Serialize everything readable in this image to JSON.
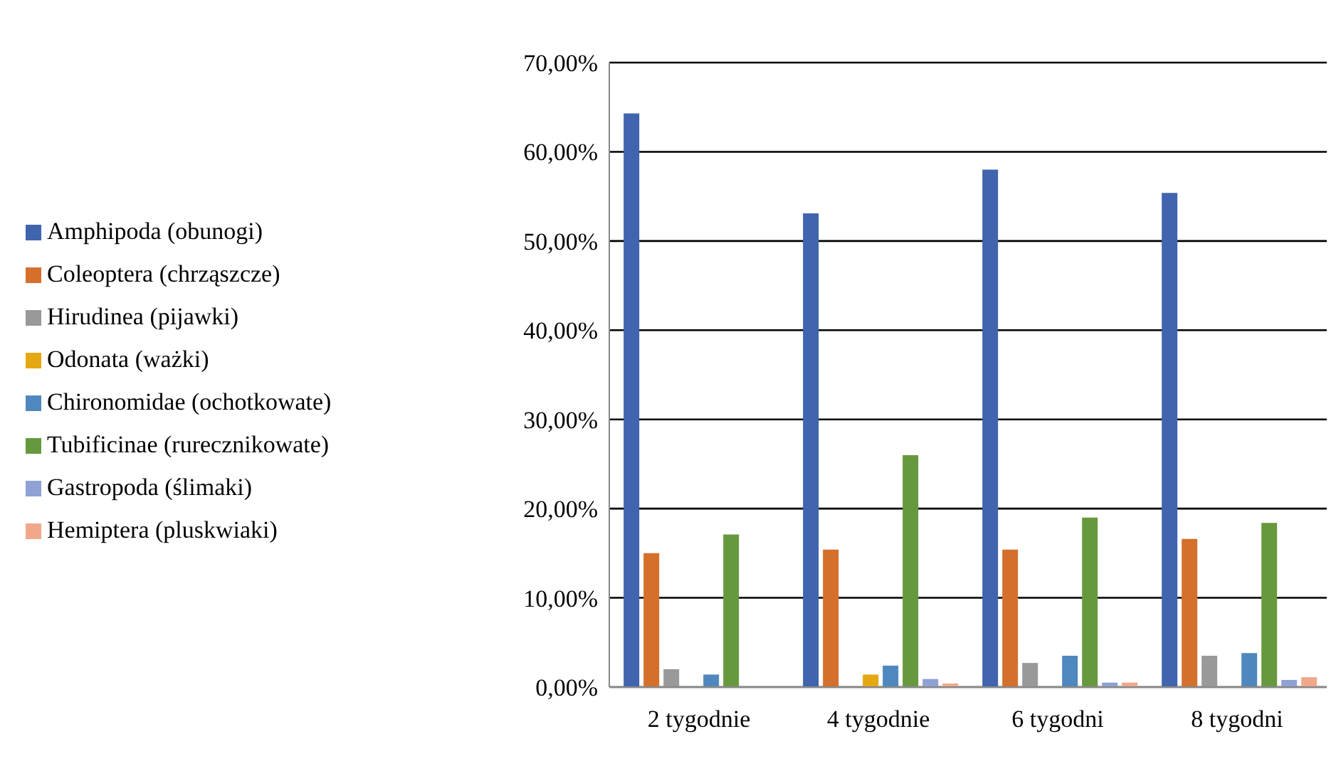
{
  "chart_data": {
    "type": "bar",
    "categories": [
      "2 tygodnie",
      "4 tygodnie",
      "6 tygodni",
      "8 tygodni"
    ],
    "series": [
      {
        "name": "Amphipoda (obunogi)",
        "color": "#4064ad",
        "values": [
          64.3,
          53.1,
          58.0,
          55.4
        ]
      },
      {
        "name": "Coleoptera (chrząszcze)",
        "color": "#d4702c",
        "values": [
          15.0,
          15.4,
          15.4,
          16.6
        ]
      },
      {
        "name": "Hirudinea (pijawki)",
        "color": "#999999",
        "values": [
          2.0,
          0,
          2.7,
          3.5
        ]
      },
      {
        "name": "Odonata (ważki)",
        "color": "#e5a812",
        "values": [
          0,
          1.4,
          0,
          0
        ]
      },
      {
        "name": "Chironomidae (ochotkowate)",
        "color": "#4f88be",
        "values": [
          1.4,
          2.4,
          3.5,
          3.8
        ]
      },
      {
        "name": "Tubificinae (rurecznikowate)",
        "color": "#66993e",
        "values": [
          17.1,
          26.0,
          19.0,
          18.4
        ]
      },
      {
        "name": "Gastropoda (ślimaki)",
        "color": "#8fa2d6",
        "values": [
          0,
          0.9,
          0.5,
          0.8
        ]
      },
      {
        "name": "Hemiptera (pluskwiaki)",
        "color": "#f1a88a",
        "values": [
          0,
          0.4,
          0.5,
          1.1
        ]
      }
    ],
    "ylim": [
      0,
      70
    ],
    "yticks": [
      {
        "value": 0,
        "label": "0,00%"
      },
      {
        "value": 10,
        "label": "10,00%"
      },
      {
        "value": 20,
        "label": "20,00%"
      },
      {
        "value": 30,
        "label": "30,00%"
      },
      {
        "value": 40,
        "label": "40,00%"
      },
      {
        "value": 50,
        "label": "50,00%"
      },
      {
        "value": 60,
        "label": "60,00%"
      },
      {
        "value": 70,
        "label": "70,00%"
      }
    ],
    "grid": "y",
    "legend": "left"
  }
}
